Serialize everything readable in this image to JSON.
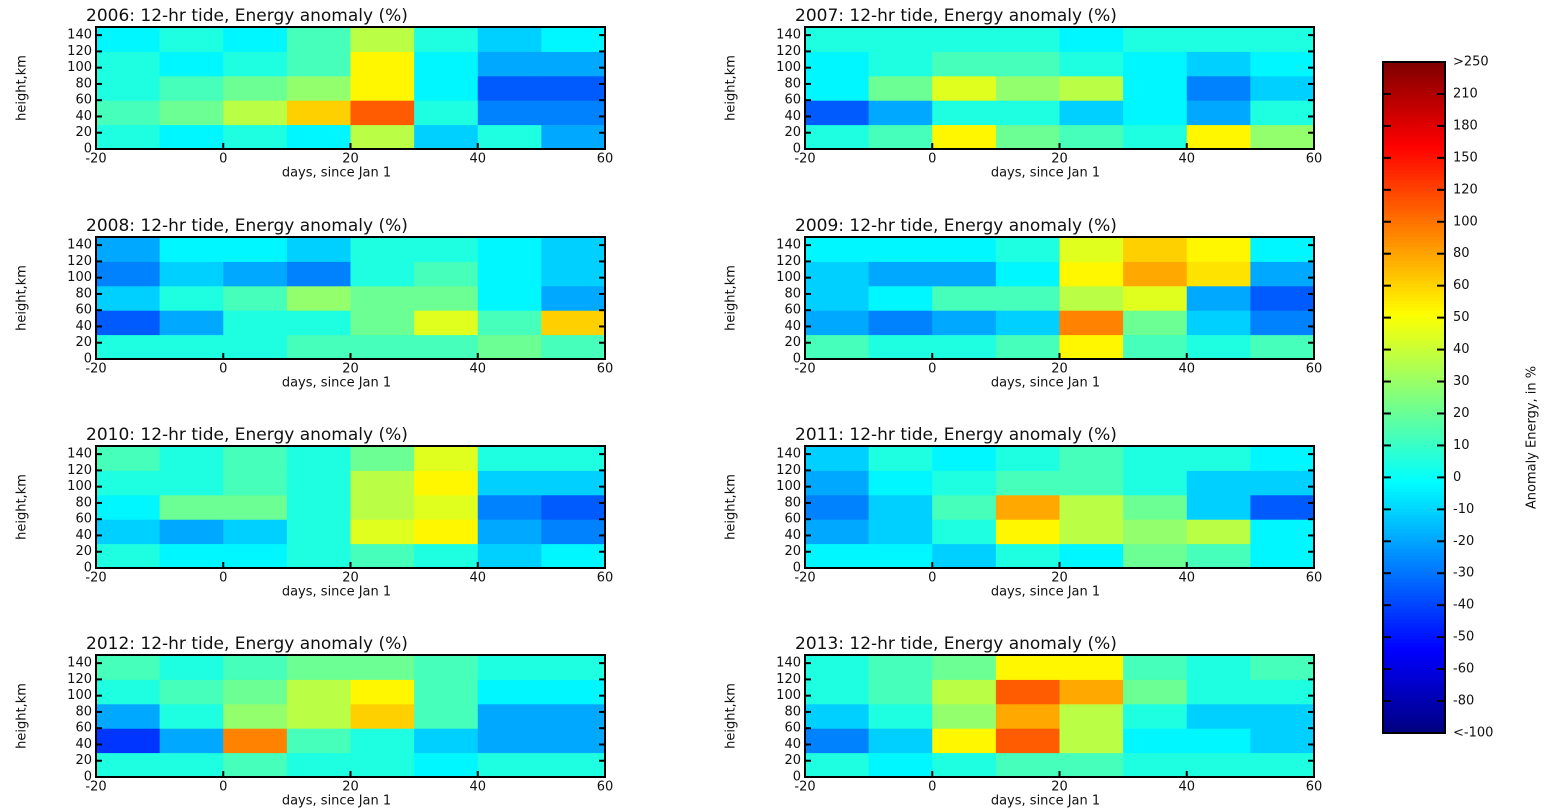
{
  "chart_data": [
    {
      "type": "heatmap",
      "title": "2006:  12-hr tide, Energy anomaly (%)",
      "xlabel": "days, since Jan 1",
      "ylabel": "height,km",
      "xlim": [
        -20,
        60
      ],
      "ylim": [
        0,
        150
      ],
      "xticks": [
        -20,
        0,
        20,
        40,
        60
      ],
      "yticks": [
        0,
        20,
        40,
        60,
        80,
        100,
        120,
        140
      ],
      "x_edges": [
        -20,
        -10,
        0,
        10,
        20,
        30,
        40,
        50,
        60
      ],
      "y_edges": [
        0,
        30,
        60,
        90,
        120,
        150
      ],
      "z": [
        [
          0,
          -10,
          0,
          -10,
          40,
          -20,
          0,
          -30
        ],
        [
          10,
          20,
          40,
          80,
          150,
          0,
          -40,
          -40
        ],
        [
          0,
          10,
          20,
          30,
          60,
          -10,
          -50,
          -50
        ],
        [
          0,
          -10,
          0,
          10,
          60,
          -10,
          -30,
          -30
        ],
        [
          -10,
          0,
          -10,
          10,
          40,
          0,
          -20,
          -10
        ]
      ]
    },
    {
      "type": "heatmap",
      "title": "2007:  12-hr tide, Energy anomaly (%)",
      "xlabel": "days, since Jan 1",
      "ylabel": "height,km",
      "xlim": [
        -20,
        60
      ],
      "ylim": [
        0,
        150
      ],
      "xticks": [
        -20,
        0,
        20,
        40,
        60
      ],
      "yticks": [
        0,
        20,
        40,
        60,
        80,
        100,
        120,
        140
      ],
      "x_edges": [
        -20,
        -10,
        0,
        10,
        20,
        30,
        40,
        50,
        60
      ],
      "y_edges": [
        0,
        30,
        60,
        90,
        120,
        150
      ],
      "z": [
        [
          0,
          10,
          60,
          20,
          10,
          0,
          60,
          30
        ],
        [
          -50,
          -30,
          0,
          0,
          -20,
          -10,
          -30,
          0
        ],
        [
          -10,
          20,
          50,
          30,
          40,
          -10,
          -40,
          -20
        ],
        [
          -10,
          0,
          10,
          10,
          0,
          -10,
          -20,
          -10
        ],
        [
          0,
          0,
          0,
          0,
          -10,
          0,
          0,
          0
        ]
      ]
    },
    {
      "type": "heatmap",
      "title": "2008:  12-hr tide, Energy anomaly (%)",
      "xlabel": "days, since Jan 1",
      "ylabel": "height,km",
      "xlim": [
        -20,
        60
      ],
      "ylim": [
        0,
        150
      ],
      "xticks": [
        -20,
        0,
        20,
        40,
        60
      ],
      "yticks": [
        0,
        20,
        40,
        60,
        80,
        100,
        120,
        140
      ],
      "x_edges": [
        -20,
        -10,
        0,
        10,
        20,
        30,
        40,
        50,
        60
      ],
      "y_edges": [
        0,
        30,
        60,
        90,
        120,
        150
      ],
      "z": [
        [
          0,
          0,
          0,
          10,
          10,
          10,
          20,
          10
        ],
        [
          -50,
          -30,
          0,
          0,
          20,
          50,
          10,
          80
        ],
        [
          -20,
          0,
          10,
          30,
          20,
          20,
          -10,
          -30
        ],
        [
          -40,
          -20,
          -30,
          -40,
          0,
          10,
          -10,
          -20
        ],
        [
          -30,
          -10,
          -10,
          -20,
          0,
          0,
          -10,
          -20
        ]
      ]
    },
    {
      "type": "heatmap",
      "title": "2009:  12-hr tide, Energy anomaly (%)",
      "xlabel": "days, since Jan 1",
      "ylabel": "height,km",
      "xlim": [
        -20,
        60
      ],
      "ylim": [
        0,
        150
      ],
      "xticks": [
        -20,
        0,
        20,
        40,
        60
      ],
      "yticks": [
        0,
        20,
        40,
        60,
        80,
        100,
        120,
        140
      ],
      "x_edges": [
        -20,
        -10,
        0,
        10,
        20,
        30,
        40,
        50,
        60
      ],
      "y_edges": [
        0,
        30,
        60,
        90,
        120,
        150
      ],
      "z": [
        [
          10,
          0,
          0,
          10,
          60,
          10,
          0,
          10
        ],
        [
          -30,
          -40,
          -30,
          -20,
          120,
          20,
          -20,
          -40
        ],
        [
          -20,
          -10,
          10,
          10,
          40,
          50,
          -30,
          -50
        ],
        [
          -20,
          -30,
          -30,
          -10,
          60,
          100,
          70,
          -30
        ],
        [
          -10,
          -10,
          -10,
          0,
          50,
          80,
          60,
          -10
        ]
      ]
    },
    {
      "type": "heatmap",
      "title": "2010:  12-hr tide, Energy anomaly (%)",
      "xlabel": "days, since Jan 1",
      "ylabel": "height,km",
      "xlim": [
        -20,
        60
      ],
      "ylim": [
        0,
        150
      ],
      "xticks": [
        -20,
        0,
        20,
        40,
        60
      ],
      "yticks": [
        0,
        20,
        40,
        60,
        80,
        100,
        120,
        140
      ],
      "x_edges": [
        -20,
        -10,
        0,
        10,
        20,
        30,
        40,
        50,
        60
      ],
      "y_edges": [
        0,
        30,
        60,
        90,
        120,
        150
      ],
      "z": [
        [
          0,
          -10,
          -10,
          0,
          10,
          0,
          -20,
          -10
        ],
        [
          -20,
          -30,
          -20,
          0,
          50,
          60,
          -30,
          -40
        ],
        [
          -10,
          20,
          20,
          0,
          40,
          50,
          -40,
          -50
        ],
        [
          0,
          0,
          10,
          0,
          40,
          60,
          -20,
          -20
        ],
        [
          10,
          0,
          10,
          0,
          20,
          50,
          0,
          0
        ]
      ]
    },
    {
      "type": "heatmap",
      "title": "2011:  12-hr tide, Energy anomaly (%)",
      "xlabel": "days, since Jan 1",
      "ylabel": "height,km",
      "xlim": [
        -20,
        60
      ],
      "ylim": [
        0,
        150
      ],
      "xticks": [
        -20,
        0,
        20,
        40,
        60
      ],
      "yticks": [
        0,
        20,
        40,
        60,
        80,
        100,
        120,
        140
      ],
      "x_edges": [
        -20,
        -10,
        0,
        10,
        20,
        30,
        40,
        50,
        60
      ],
      "y_edges": [
        0,
        30,
        60,
        90,
        120,
        150
      ],
      "z": [
        [
          -10,
          -10,
          -20,
          0,
          -10,
          20,
          10,
          -10
        ],
        [
          -30,
          -20,
          0,
          60,
          40,
          30,
          40,
          -10
        ],
        [
          -40,
          -20,
          10,
          100,
          40,
          20,
          -20,
          -50
        ],
        [
          -30,
          -10,
          0,
          10,
          10,
          0,
          -20,
          -20
        ],
        [
          -20,
          0,
          -10,
          0,
          10,
          0,
          0,
          -10
        ]
      ]
    },
    {
      "type": "heatmap",
      "title": "2012:  12-hr tide, Energy anomaly (%)",
      "xlabel": "days, since Jan 1",
      "ylabel": "height,km",
      "xlim": [
        -20,
        60
      ],
      "ylim": [
        0,
        150
      ],
      "xticks": [
        -20,
        0,
        20,
        40,
        60
      ],
      "yticks": [
        0,
        20,
        40,
        60,
        80,
        100,
        120,
        140
      ],
      "x_edges": [
        -20,
        -10,
        0,
        10,
        20,
        30,
        40,
        50,
        60
      ],
      "y_edges": [
        0,
        30,
        60,
        90,
        120,
        150
      ],
      "z": [
        [
          0,
          0,
          10,
          0,
          0,
          -10,
          0,
          0
        ],
        [
          -60,
          -30,
          120,
          10,
          0,
          -20,
          -30,
          -30
        ],
        [
          -30,
          0,
          30,
          40,
          80,
          10,
          -30,
          -30
        ],
        [
          0,
          10,
          20,
          40,
          60,
          10,
          -10,
          -10
        ],
        [
          10,
          0,
          10,
          20,
          20,
          10,
          0,
          0
        ]
      ]
    },
    {
      "type": "heatmap",
      "title": "2013:  12-hr tide, Energy anomaly (%)",
      "xlabel": "days, since Jan 1",
      "ylabel": "height,km",
      "xlim": [
        -20,
        60
      ],
      "ylim": [
        0,
        150
      ],
      "xticks": [
        -20,
        0,
        20,
        40,
        60
      ],
      "yticks": [
        0,
        20,
        40,
        60,
        80,
        100,
        120,
        140
      ],
      "x_edges": [
        -20,
        -10,
        0,
        10,
        20,
        30,
        40,
        50,
        60
      ],
      "y_edges": [
        0,
        30,
        60,
        90,
        120,
        150
      ],
      "z": [
        [
          0,
          -10,
          0,
          10,
          10,
          0,
          0,
          0
        ],
        [
          -40,
          -20,
          60,
          150,
          40,
          -10,
          -10,
          -20
        ],
        [
          -20,
          0,
          30,
          100,
          40,
          0,
          -20,
          -20
        ],
        [
          0,
          10,
          40,
          150,
          100,
          20,
          0,
          0
        ],
        [
          0,
          10,
          20,
          60,
          60,
          10,
          0,
          10
        ]
      ]
    }
  ],
  "colorbar": {
    "label": "Anomaly Energy, in %",
    "colormap": "jet",
    "ticks": [
      {
        "value": 250,
        "label": ">250"
      },
      210,
      180,
      150,
      120,
      100,
      80,
      60,
      50,
      40,
      30,
      20,
      10,
      0,
      -10,
      -20,
      -30,
      -40,
      -50,
      -60,
      -80,
      {
        "value": -100,
        "label": "<-100"
      }
    ]
  }
}
